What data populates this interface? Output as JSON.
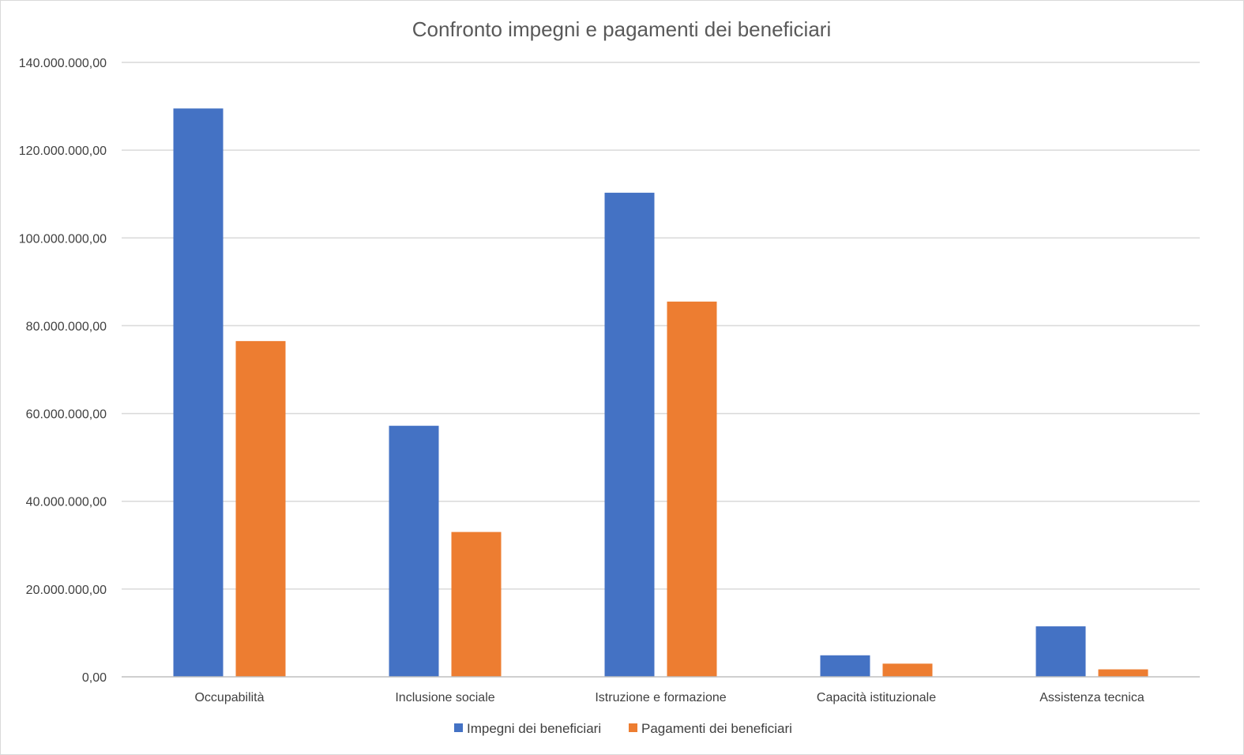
{
  "colors": {
    "impegni": "#4472C4",
    "pagamenti": "#ED7D31"
  },
  "chart_data": {
    "type": "bar",
    "title": "Confronto impegni e pagamenti dei beneficiari",
    "xlabel": "",
    "ylabel": "",
    "ylim": [
      0,
      140000000
    ],
    "grid": true,
    "legend_position": "bottom",
    "y_ticks": [
      {
        "value": 0,
        "label": "0,00"
      },
      {
        "value": 20000000,
        "label": "20.000.000,00"
      },
      {
        "value": 40000000,
        "label": "40.000.000,00"
      },
      {
        "value": 60000000,
        "label": "60.000.000,00"
      },
      {
        "value": 80000000,
        "label": "80.000.000,00"
      },
      {
        "value": 100000000,
        "label": "100.000.000,00"
      },
      {
        "value": 120000000,
        "label": "120.000.000,00"
      },
      {
        "value": 140000000,
        "label": "140.000.000,00"
      }
    ],
    "categories": [
      "Occupabilità",
      "Inclusione sociale",
      "Istruzione e formazione",
      "Capacità istituzionale",
      "Assistenza tecnica"
    ],
    "series": [
      {
        "name": "Impegni dei beneficiari",
        "color": "#4472C4",
        "values": [
          129500000,
          57200000,
          110300000,
          4900000,
          11500000
        ]
      },
      {
        "name": "Pagamenti dei beneficiari",
        "color": "#ED7D31",
        "values": [
          76500000,
          33000000,
          85500000,
          3000000,
          1700000
        ]
      }
    ]
  }
}
